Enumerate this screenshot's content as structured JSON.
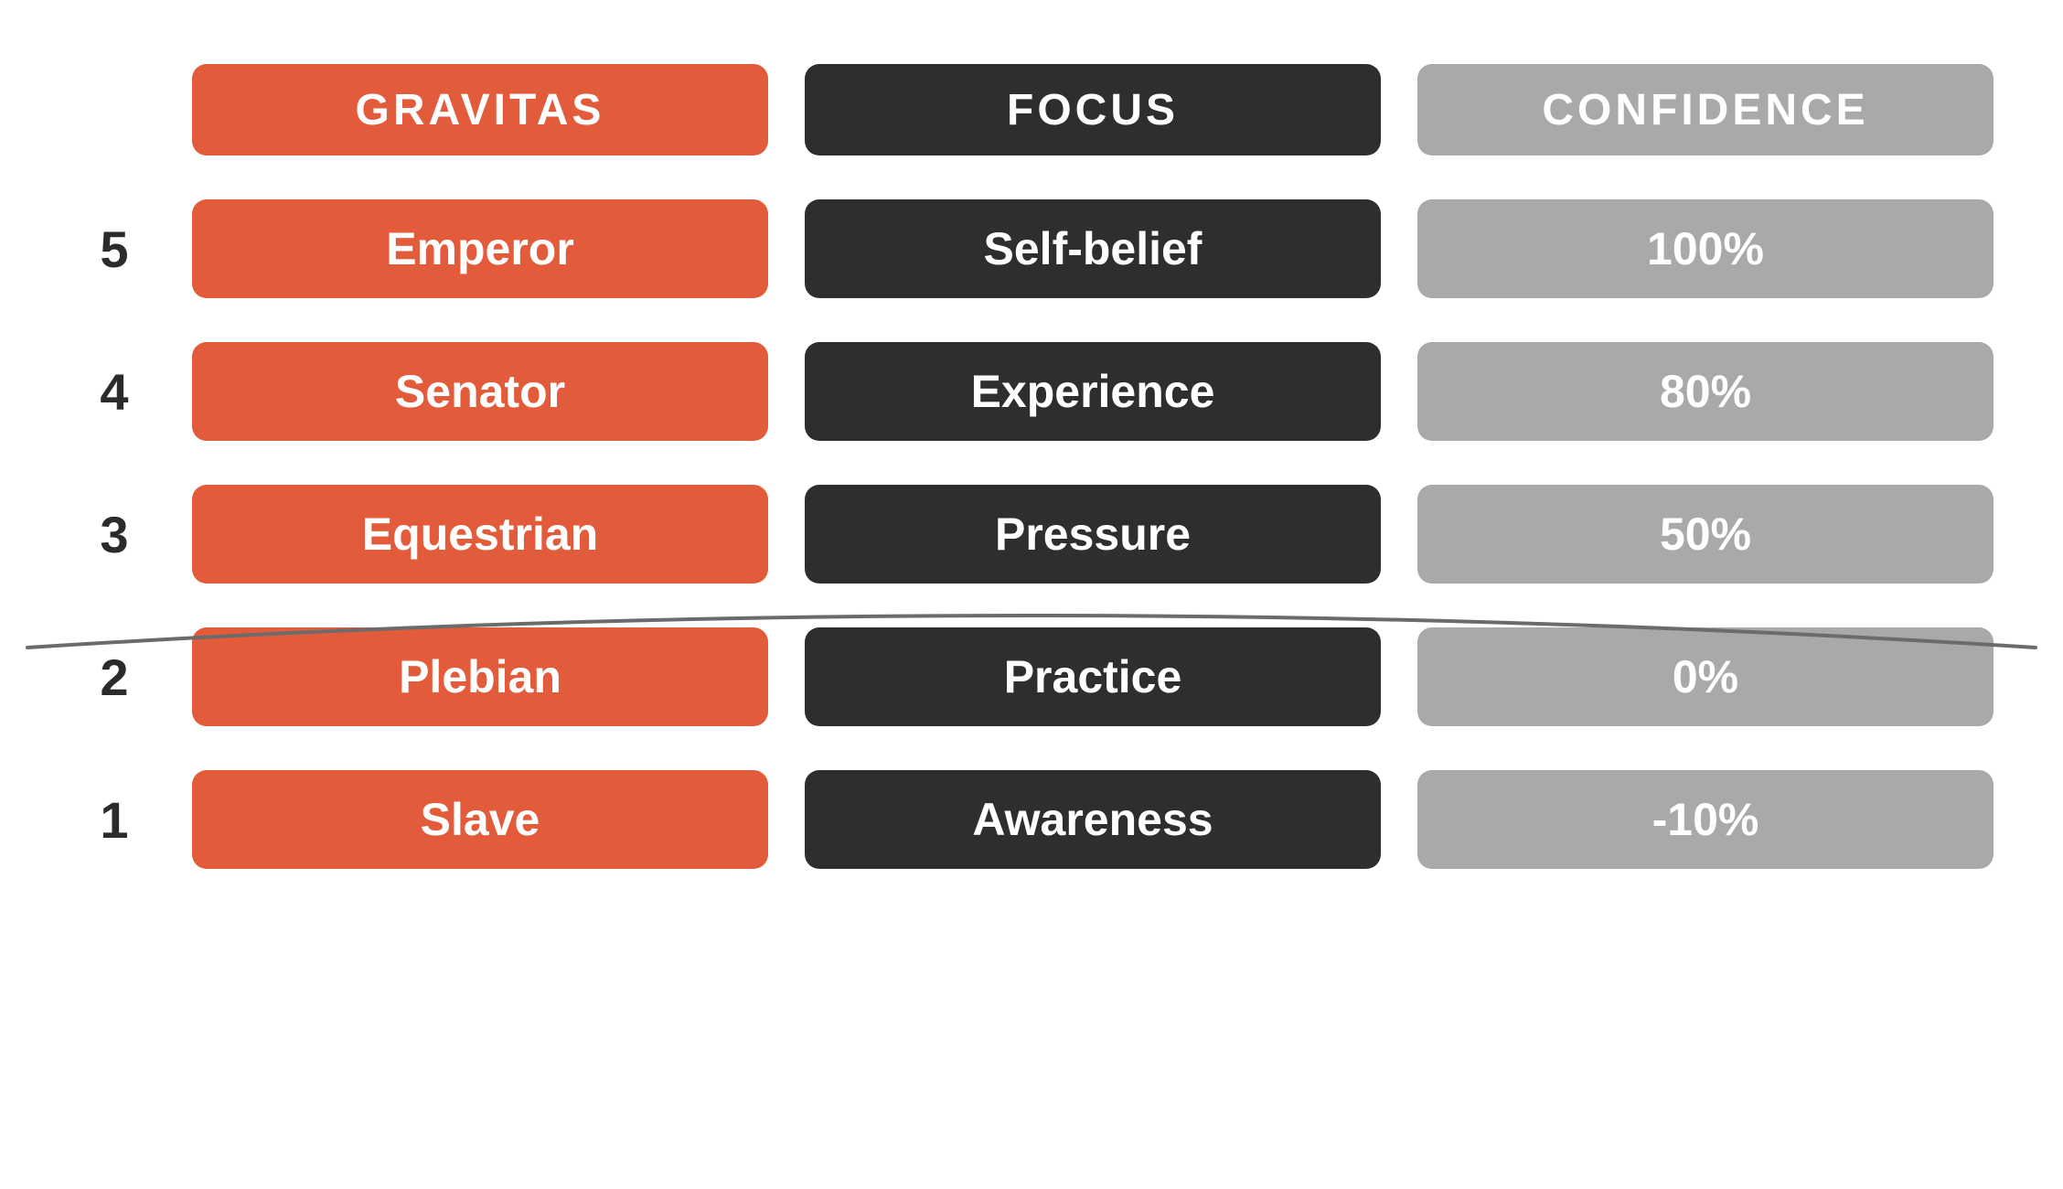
{
  "type": "table",
  "background_color": "#ffffff",
  "text_color": "#ffffff",
  "number_color": "#2b2b2b",
  "divider_color": "#6b6b6b",
  "header_fontsize": 48,
  "cell_fontsize": 50,
  "number_fontsize": 56,
  "pill_radius": 16,
  "columns": [
    {
      "key": "gravitas",
      "label": "GRAVITAS",
      "color": "#e25b3a"
    },
    {
      "key": "focus",
      "label": "FOCUS",
      "color": "#2e2e2e"
    },
    {
      "key": "confidence",
      "label": "CONFIDENCE",
      "color": "#a9a9a9"
    }
  ],
  "rows": [
    {
      "num": "5",
      "gravitas": "Emperor",
      "focus": "Self-belief",
      "confidence": "100%"
    },
    {
      "num": "4",
      "gravitas": "Senator",
      "focus": "Experience",
      "confidence": "80%"
    },
    {
      "num": "3",
      "gravitas": "Equestrian",
      "focus": "Pressure",
      "confidence": "50%"
    },
    {
      "num": "2",
      "gravitas": "Plebian",
      "focus": "Practice",
      "confidence": "0%"
    },
    {
      "num": "1",
      "gravitas": "Slave",
      "focus": "Awareness",
      "confidence": "-10%"
    }
  ],
  "divider_after_row_index": 2
}
